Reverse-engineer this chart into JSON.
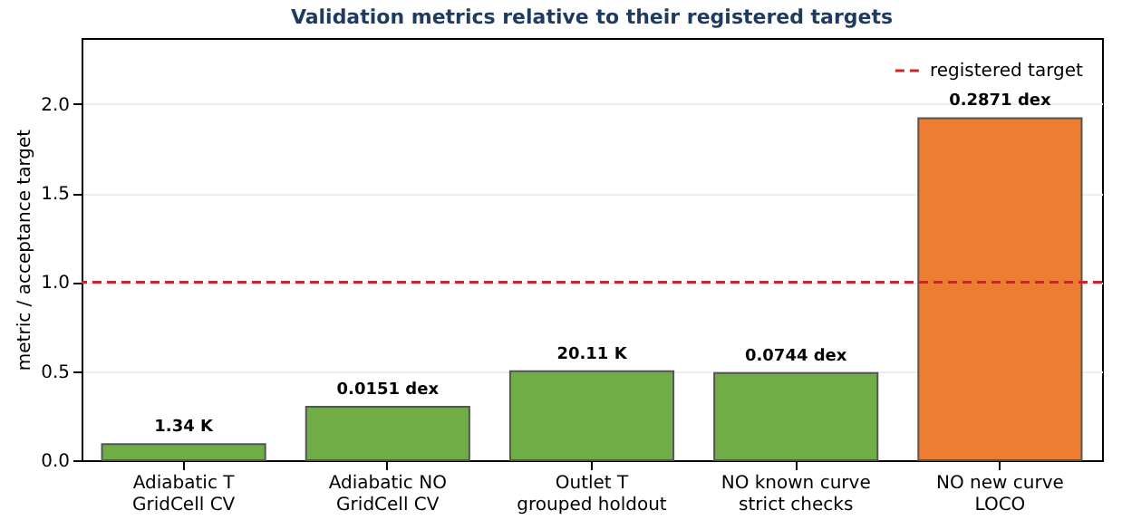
{
  "chart_data": {
    "type": "bar",
    "title": "Validation metrics relative to their registered targets",
    "ylabel": "metric / acceptance target",
    "categories": [
      "Adiabatic T\nGridCell CV",
      "Adiabatic NO\nGridCell CV",
      "Outlet T\ngrouped holdout",
      "NO known curve\nstrict checks",
      "NO new curve\nLOCO"
    ],
    "values": [
      0.09,
      0.3,
      0.5,
      0.49,
      1.92
    ],
    "colors": [
      "#70ad47",
      "#70ad47",
      "#70ad47",
      "#70ad47",
      "#ed7d31"
    ],
    "annotations": [
      {
        "text": "1.34 K",
        "x": "Adiabatic T\nGridCell CV",
        "y": 0.09
      },
      {
        "text": "0.0151 dex",
        "x": "Adiabatic NO\nGridCell CV",
        "y": 0.3
      },
      {
        "text": "20.11 K",
        "x": "Outlet T\ngrouped holdout",
        "y": 0.5
      },
      {
        "text": "0.0744 dex",
        "x": "NO known curve\nstrict checks",
        "y": 0.49
      },
      {
        "text": "0.2871 dex",
        "x": "NO new curve\nLOCO",
        "y": 1.92
      }
    ],
    "ylim": [
      0,
      2.37
    ],
    "yticks": [
      {
        "value": 0,
        "label": "0.0"
      },
      {
        "value": 0.5,
        "label": "0.5"
      },
      {
        "value": 1,
        "label": "1.0"
      },
      {
        "value": 1.5,
        "label": "1.5"
      },
      {
        "value": 2,
        "label": "2.0"
      }
    ],
    "grid": "y",
    "legend": "top right",
    "ref_lines": [
      {
        "axis": "y",
        "value": 1,
        "label": "registered target",
        "color": "#c62828",
        "line_style": "dashed"
      }
    ]
  }
}
